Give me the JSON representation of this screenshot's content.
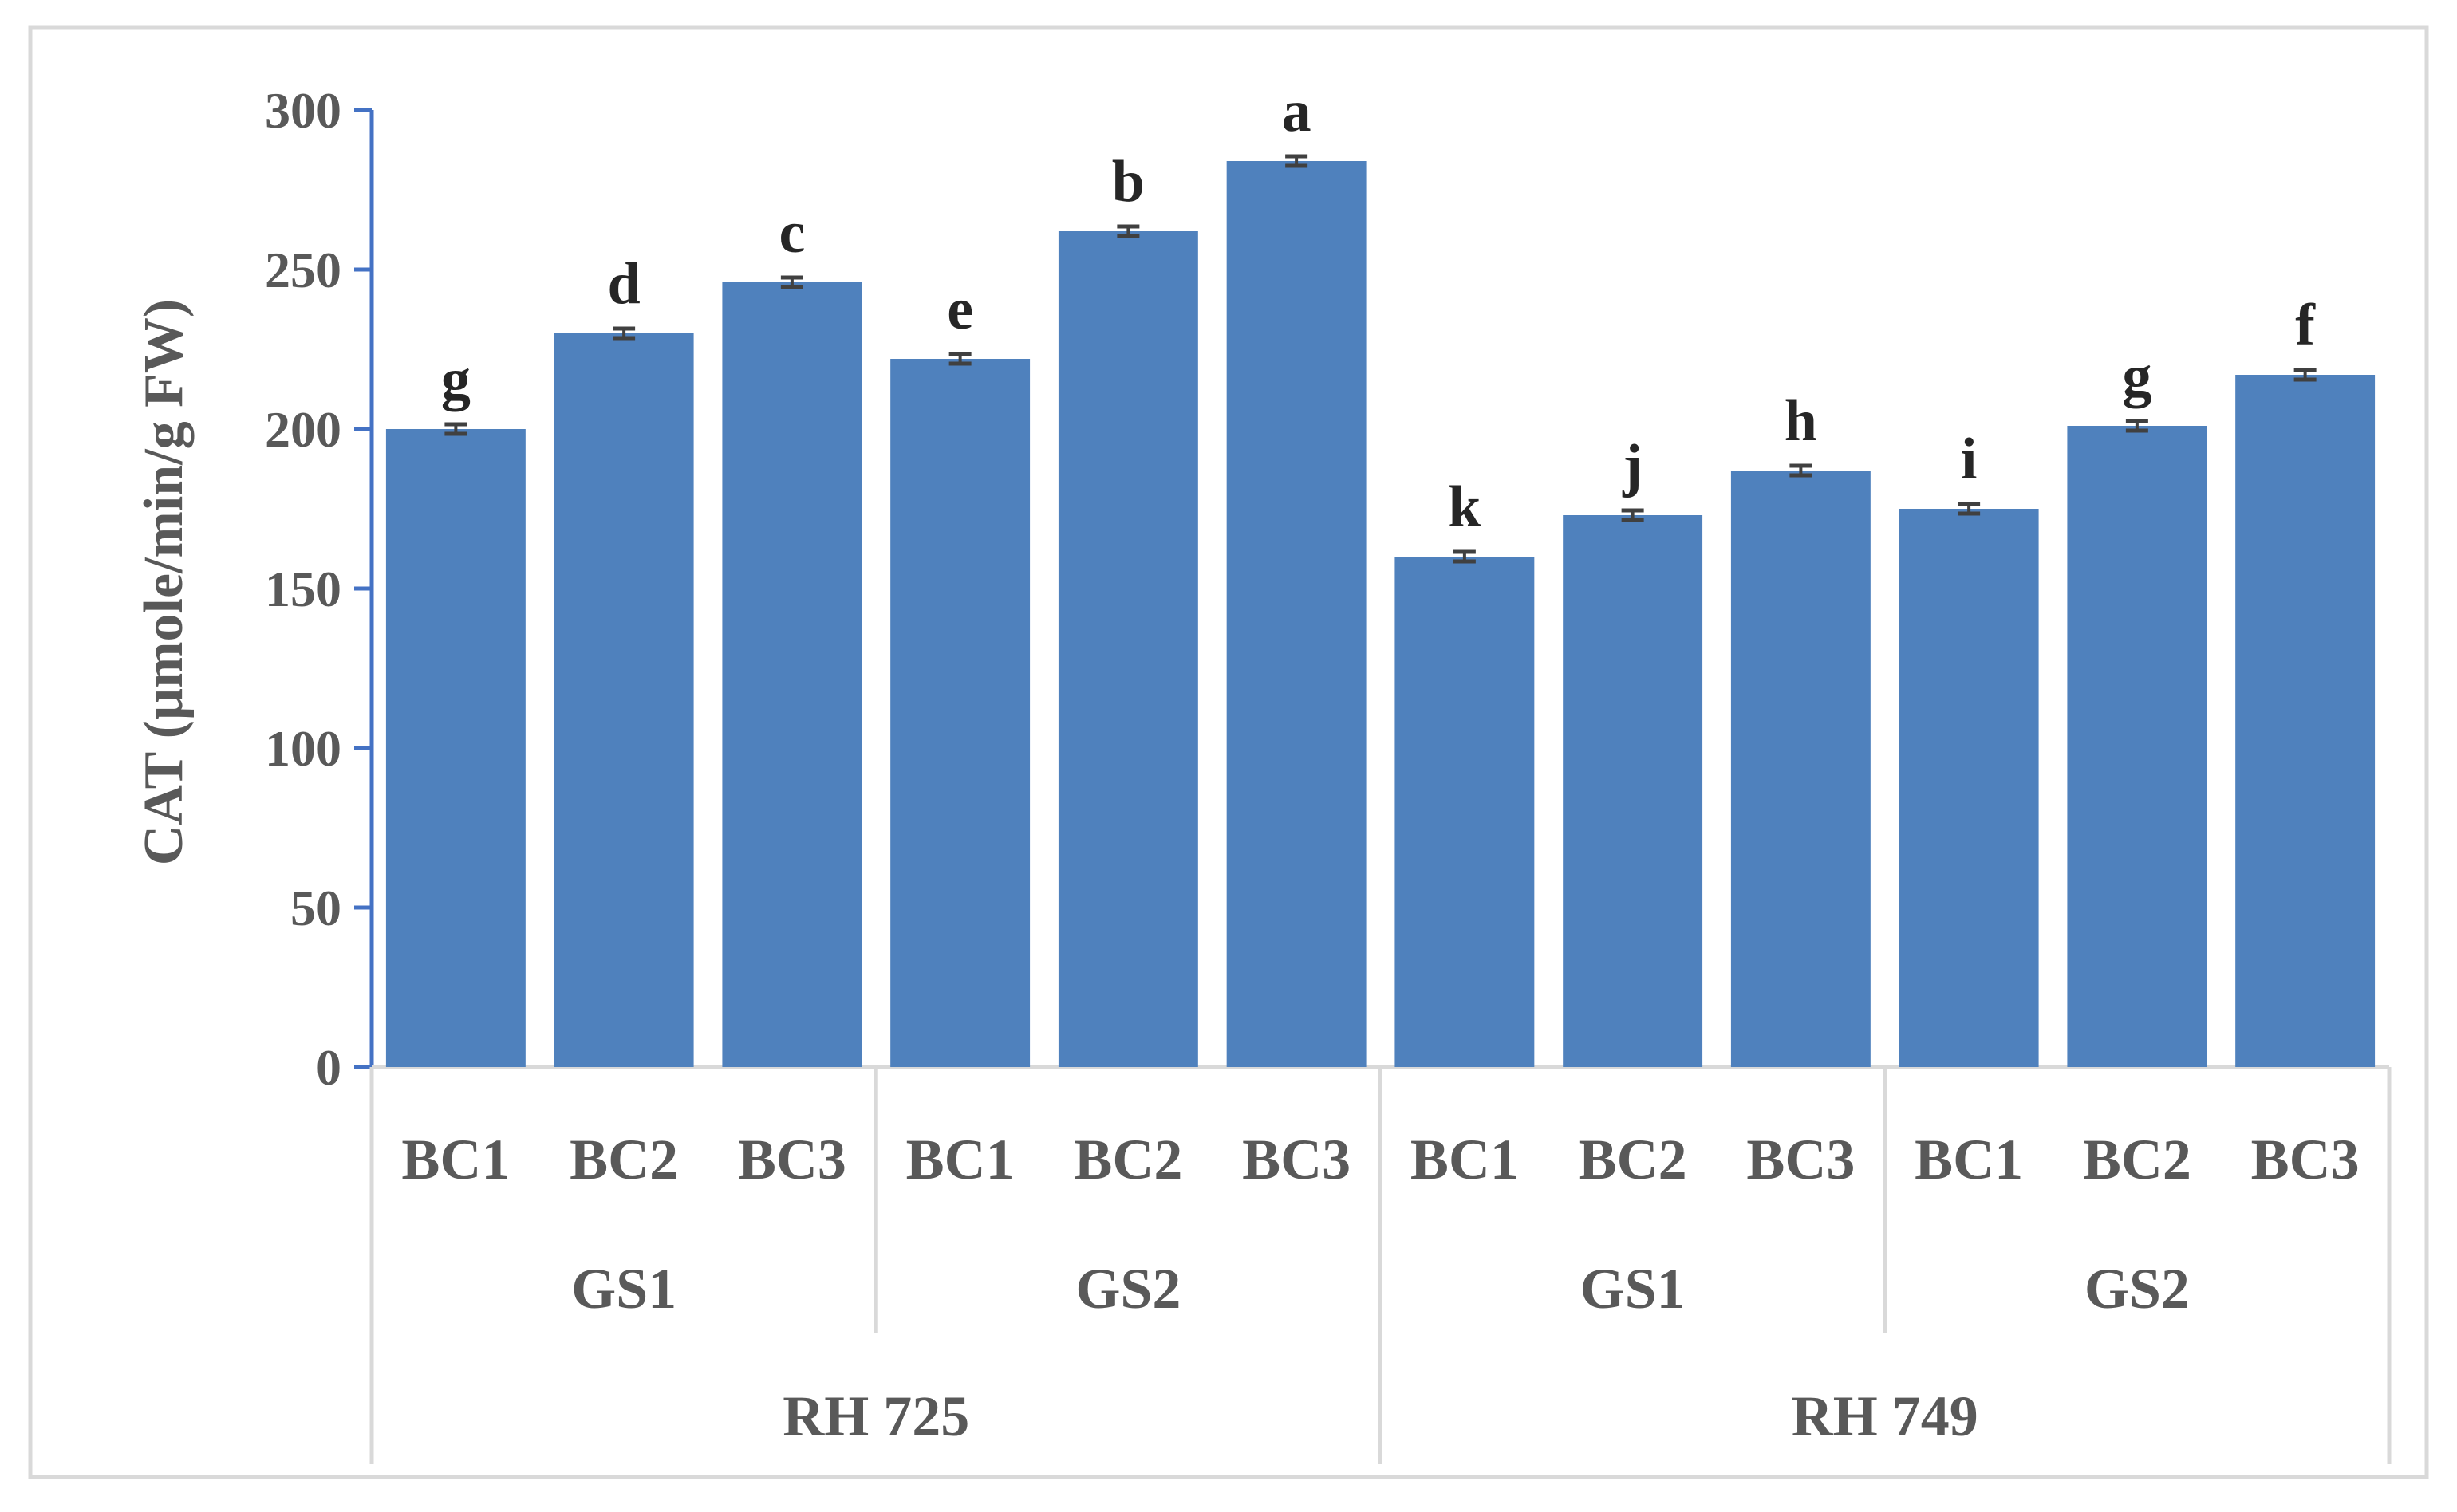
{
  "chart_data": {
    "type": "bar",
    "ylabel": "CAT (µmole/min/g FW)",
    "ylim": [
      0,
      300
    ],
    "yticks": [
      0,
      50,
      100,
      150,
      200,
      250,
      300
    ],
    "grid": false,
    "legend": "none",
    "bar_color": "#4f81bd",
    "axis_color": "#4472c4",
    "categories": [
      "BC1",
      "BC2",
      "BC3",
      "BC1",
      "BC2",
      "BC3",
      "BC1",
      "BC2",
      "BC3",
      "BC1",
      "BC2",
      "BC3"
    ],
    "values": [
      200,
      230,
      246,
      222,
      262,
      284,
      160,
      173,
      187,
      175,
      201,
      217
    ],
    "error": [
      1.5,
      1.5,
      1.5,
      1.5,
      1.5,
      1.5,
      1.5,
      1.5,
      1.5,
      1.5,
      1.5,
      1.5
    ],
    "significance": [
      "g",
      "d",
      "c",
      "e",
      "b",
      "a",
      "k",
      "j",
      "h",
      "i",
      "g",
      "f"
    ],
    "groups_level1": [
      {
        "label": "GS1",
        "span": 3
      },
      {
        "label": "GS2",
        "span": 3
      },
      {
        "label": "GS1",
        "span": 3
      },
      {
        "label": "GS2",
        "span": 3
      }
    ],
    "groups_level2": [
      {
        "label": "RH 725",
        "span": 6
      },
      {
        "label": "RH 749",
        "span": 6
      }
    ]
  }
}
